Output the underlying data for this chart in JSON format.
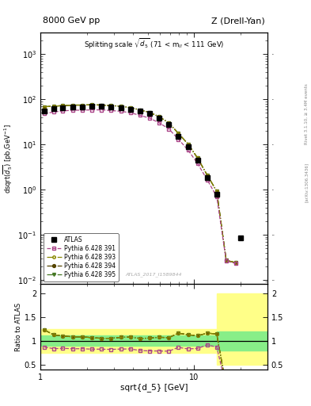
{
  "title_left": "8000 GeV pp",
  "title_right": "Z (Drell-Yan)",
  "plot_title": "Splitting scale $\\sqrt{d_5}$ (71 < m$_{ll}$ < 111 GeV)",
  "xlabel": "sqrt{d_5} [GeV]",
  "ylabel_main": "d$\\sigma$/dsqrt($\\overline{d_5}$) [pb,GeV$^{-1}$]",
  "ylabel_ratio": "Ratio to ATLAS",
  "watermark": "ATLAS_2017_I1589844",
  "right_label": "Rivet 3.1.10, ≥ 3.4M events",
  "right_label2": "[arXiv:1306.3436]",
  "atlas_x": [
    1.06,
    1.22,
    1.4,
    1.62,
    1.87,
    2.16,
    2.49,
    2.88,
    3.33,
    3.85,
    4.44,
    5.13,
    5.92,
    6.84,
    7.9,
    9.12,
    10.52,
    12.15,
    14.02,
    20.0
  ],
  "atlas_y": [
    55,
    62,
    65,
    68,
    68,
    70,
    70,
    68,
    65,
    60,
    55,
    48,
    38,
    28,
    15,
    9.0,
    4.5,
    1.8,
    0.8,
    0.085
  ],
  "py391_x": [
    1.06,
    1.22,
    1.4,
    1.62,
    1.87,
    2.16,
    2.49,
    2.88,
    3.33,
    3.85,
    4.44,
    5.13,
    5.92,
    6.84,
    7.9,
    9.12,
    10.52,
    12.15,
    14.02,
    16.18,
    18.68
  ],
  "py391_y": [
    48,
    52,
    55,
    57,
    57,
    58,
    58,
    56,
    54,
    50,
    44,
    38,
    30,
    22,
    13,
    7.5,
    3.8,
    1.65,
    0.7,
    0.026,
    0.023
  ],
  "py393_x": [
    1.06,
    1.22,
    1.4,
    1.62,
    1.87,
    2.16,
    2.49,
    2.88,
    3.33,
    3.85,
    4.44,
    5.13,
    5.92,
    6.84,
    7.9,
    9.12,
    10.52,
    12.15,
    14.02,
    16.18,
    18.68
  ],
  "py393_y": [
    68,
    70,
    72,
    74,
    74,
    75,
    74,
    72,
    70,
    65,
    58,
    51,
    41,
    30,
    17.5,
    10.2,
    5.0,
    2.1,
    0.92,
    0.027,
    0.024
  ],
  "py394_x": [
    1.06,
    1.22,
    1.4,
    1.62,
    1.87,
    2.16,
    2.49,
    2.88,
    3.33,
    3.85,
    4.44,
    5.13,
    5.92,
    6.84,
    7.9,
    9.12,
    10.52,
    12.15,
    14.02,
    16.18,
    18.68
  ],
  "py394_y": [
    68,
    70,
    72,
    74,
    74,
    75,
    74,
    72,
    70,
    65,
    58,
    51,
    41,
    30,
    17.5,
    10.2,
    5.0,
    2.1,
    0.92,
    0.027,
    0.024
  ],
  "py395_x": [
    1.06,
    1.22,
    1.4,
    1.62,
    1.87,
    2.16,
    2.49,
    2.88,
    3.33,
    3.85,
    4.44,
    5.13,
    5.92,
    6.84,
    7.9,
    9.12,
    10.52,
    12.15,
    14.02,
    16.18,
    18.68
  ],
  "py395_y": [
    68,
    70,
    72,
    74,
    74,
    75,
    74,
    72,
    70,
    65,
    58,
    51,
    41,
    30,
    17.5,
    10.2,
    5.0,
    2.1,
    0.92,
    0.027,
    0.024
  ],
  "color_atlas": "#000000",
  "color_py391": "#aa4488",
  "color_py393": "#888800",
  "color_py394": "#554400",
  "color_py395": "#447722",
  "xlim": [
    1.0,
    30.0
  ],
  "ylim_main": [
    0.008,
    3000
  ],
  "ylim_ratio": [
    0.4,
    2.2
  ],
  "ratio_yticks": [
    0.5,
    1.0,
    1.5,
    2.0
  ],
  "ratio_yticklabels": [
    "0.5",
    "1",
    "1.5",
    "2"
  ],
  "band1_xlo": 1.0,
  "band1_xhi": 14.0,
  "band1_yellow_lo": 0.75,
  "band1_yellow_hi": 1.25,
  "band1_green_lo": 0.9,
  "band1_green_hi": 1.12,
  "band2_xlo": 14.0,
  "band2_xhi": 30.0,
  "band2_yellow_lo": 0.5,
  "band2_yellow_hi": 2.0,
  "band2_green_lo": 0.8,
  "band2_green_hi": 1.2
}
